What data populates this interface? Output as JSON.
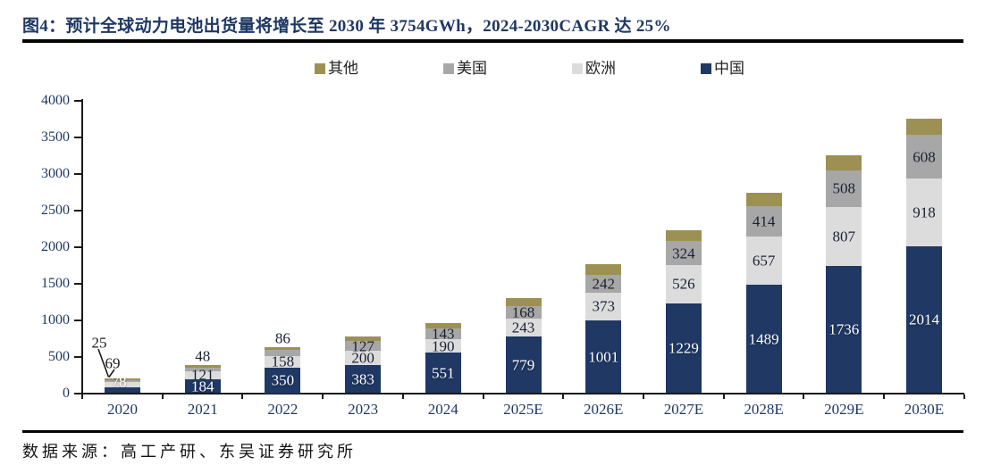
{
  "figure": {
    "title": "图4：预计全球动力电池出货量将增长至 2030 年 3754GWh，2024-2030CAGR 达 25%",
    "source": "数据来源：高工产研、东吴证券研究所"
  },
  "chart_data": {
    "type": "bar",
    "stacked": true,
    "unit": "GWh",
    "title": "预计全球动力电池出货量将增长至2030年3754GWh，2024-2030CAGR达25%",
    "categories": [
      "2020",
      "2021",
      "2022",
      "2023",
      "2024",
      "2025E",
      "2026E",
      "2027E",
      "2028E",
      "2029E",
      "2030E"
    ],
    "series": [
      {
        "key": "china",
        "name": "中国",
        "color": "#1F3864",
        "values": [
          78,
          184,
          350,
          383,
          551,
          779,
          1001,
          1229,
          1489,
          1736,
          2014
        ]
      },
      {
        "key": "europe",
        "name": "欧洲",
        "color": "#DCDCDC",
        "values": [
          69,
          121,
          158,
          200,
          190,
          243,
          373,
          526,
          657,
          807,
          918
        ]
      },
      {
        "key": "us",
        "name": "美国",
        "color": "#A7A7A7",
        "values": [
          25,
          48,
          86,
          127,
          143,
          168,
          242,
          324,
          414,
          508,
          608
        ]
      },
      {
        "key": "others",
        "name": "其他",
        "color": "#9C9153",
        "values": [
          30,
          35,
          40,
          70,
          80,
          110,
          145,
          155,
          185,
          210,
          214
        ],
        "values_estimated_from_bar_heights": true,
        "data_labels_shown": false
      }
    ],
    "legend_order": [
      "其他",
      "美国",
      "欧洲",
      "中国"
    ],
    "legend_position": "top",
    "ylim": [
      0,
      4000
    ],
    "ytick_step": 500,
    "grid": false,
    "xlabel": "",
    "ylabel": "",
    "callout_annotations": [
      {
        "category": "2020",
        "series": "美国",
        "text": "25"
      },
      {
        "category": "2020",
        "series": "欧洲",
        "text": "69"
      }
    ]
  }
}
